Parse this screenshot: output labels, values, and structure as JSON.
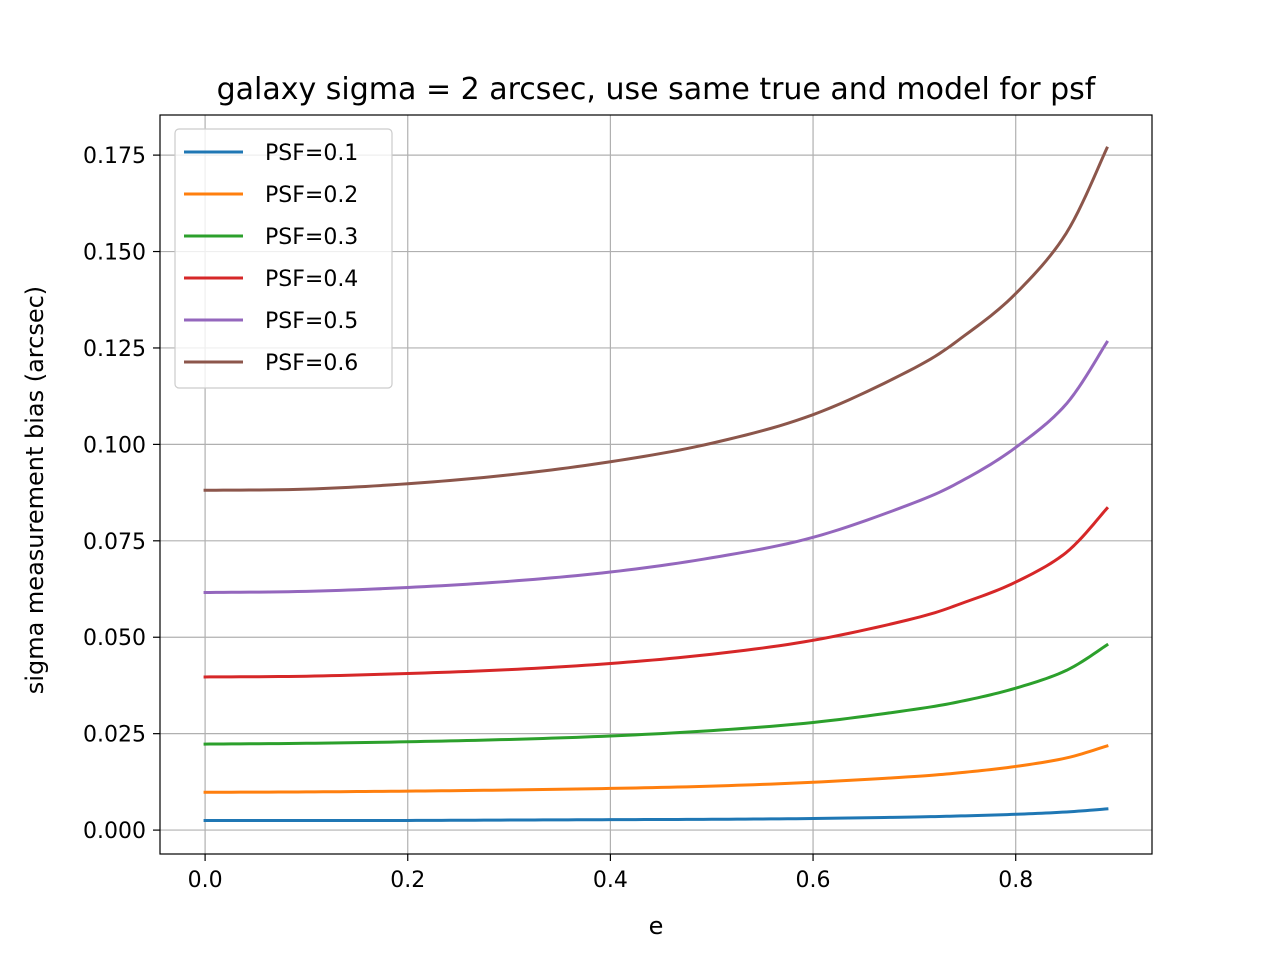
{
  "chart_data": {
    "type": "line",
    "title": "galaxy sigma = 2 arcsec, use same true and model for psf",
    "xlabel": "e",
    "ylabel": "sigma measurement bias (arcsec)",
    "xlim": [
      -0.0445,
      0.9345
    ],
    "ylim": [
      -0.0062,
      0.1854
    ],
    "xticks": [
      0.0,
      0.2,
      0.4,
      0.6,
      0.8
    ],
    "xtick_labels": [
      "0.0",
      "0.2",
      "0.4",
      "0.6",
      "0.8"
    ],
    "yticks": [
      0.0,
      0.025,
      0.05,
      0.075,
      0.1,
      0.125,
      0.15,
      0.175
    ],
    "ytick_labels": [
      "0.000",
      "0.025",
      "0.050",
      "0.075",
      "0.100",
      "0.125",
      "0.150",
      "0.175"
    ],
    "grid": true,
    "legend_position": "upper-left",
    "x": [
      0.0,
      0.1,
      0.2,
      0.3,
      0.4,
      0.5,
      0.6,
      0.7,
      0.75,
      0.8,
      0.85,
      0.89
    ],
    "series": [
      {
        "name": "PSF=0.1",
        "color": "#1f77b4",
        "values": [
          0.0025,
          0.0025,
          0.0025,
          0.0026,
          0.0027,
          0.0028,
          0.003,
          0.0034,
          0.0037,
          0.0041,
          0.0047,
          0.0055
        ]
      },
      {
        "name": "PSF=0.2",
        "color": "#ff7f0e",
        "values": [
          0.0098,
          0.0099,
          0.0101,
          0.0104,
          0.0108,
          0.0114,
          0.0124,
          0.0139,
          0.015,
          0.0165,
          0.0187,
          0.0218
        ]
      },
      {
        "name": "PSF=0.3",
        "color": "#2ca02c",
        "values": [
          0.0223,
          0.0225,
          0.0229,
          0.0235,
          0.0244,
          0.0258,
          0.0279,
          0.0313,
          0.0336,
          0.0368,
          0.0414,
          0.048
        ]
      },
      {
        "name": "PSF=0.4",
        "color": "#d62728",
        "values": [
          0.0397,
          0.0399,
          0.0406,
          0.0416,
          0.0432,
          0.0456,
          0.0492,
          0.0549,
          0.0591,
          0.0643,
          0.072,
          0.0834
        ]
      },
      {
        "name": "PSF=0.5",
        "color": "#9467bd",
        "values": [
          0.0616,
          0.0619,
          0.0629,
          0.0645,
          0.0669,
          0.0706,
          0.0759,
          0.0849,
          0.091,
          0.0992,
          0.1105,
          0.1265
        ]
      },
      {
        "name": "PSF=0.6",
        "color": "#8c564b",
        "values": [
          0.0881,
          0.0884,
          0.0898,
          0.0921,
          0.0955,
          0.1003,
          0.1077,
          0.1198,
          0.1283,
          0.1391,
          0.1548,
          0.1768
        ]
      }
    ]
  }
}
